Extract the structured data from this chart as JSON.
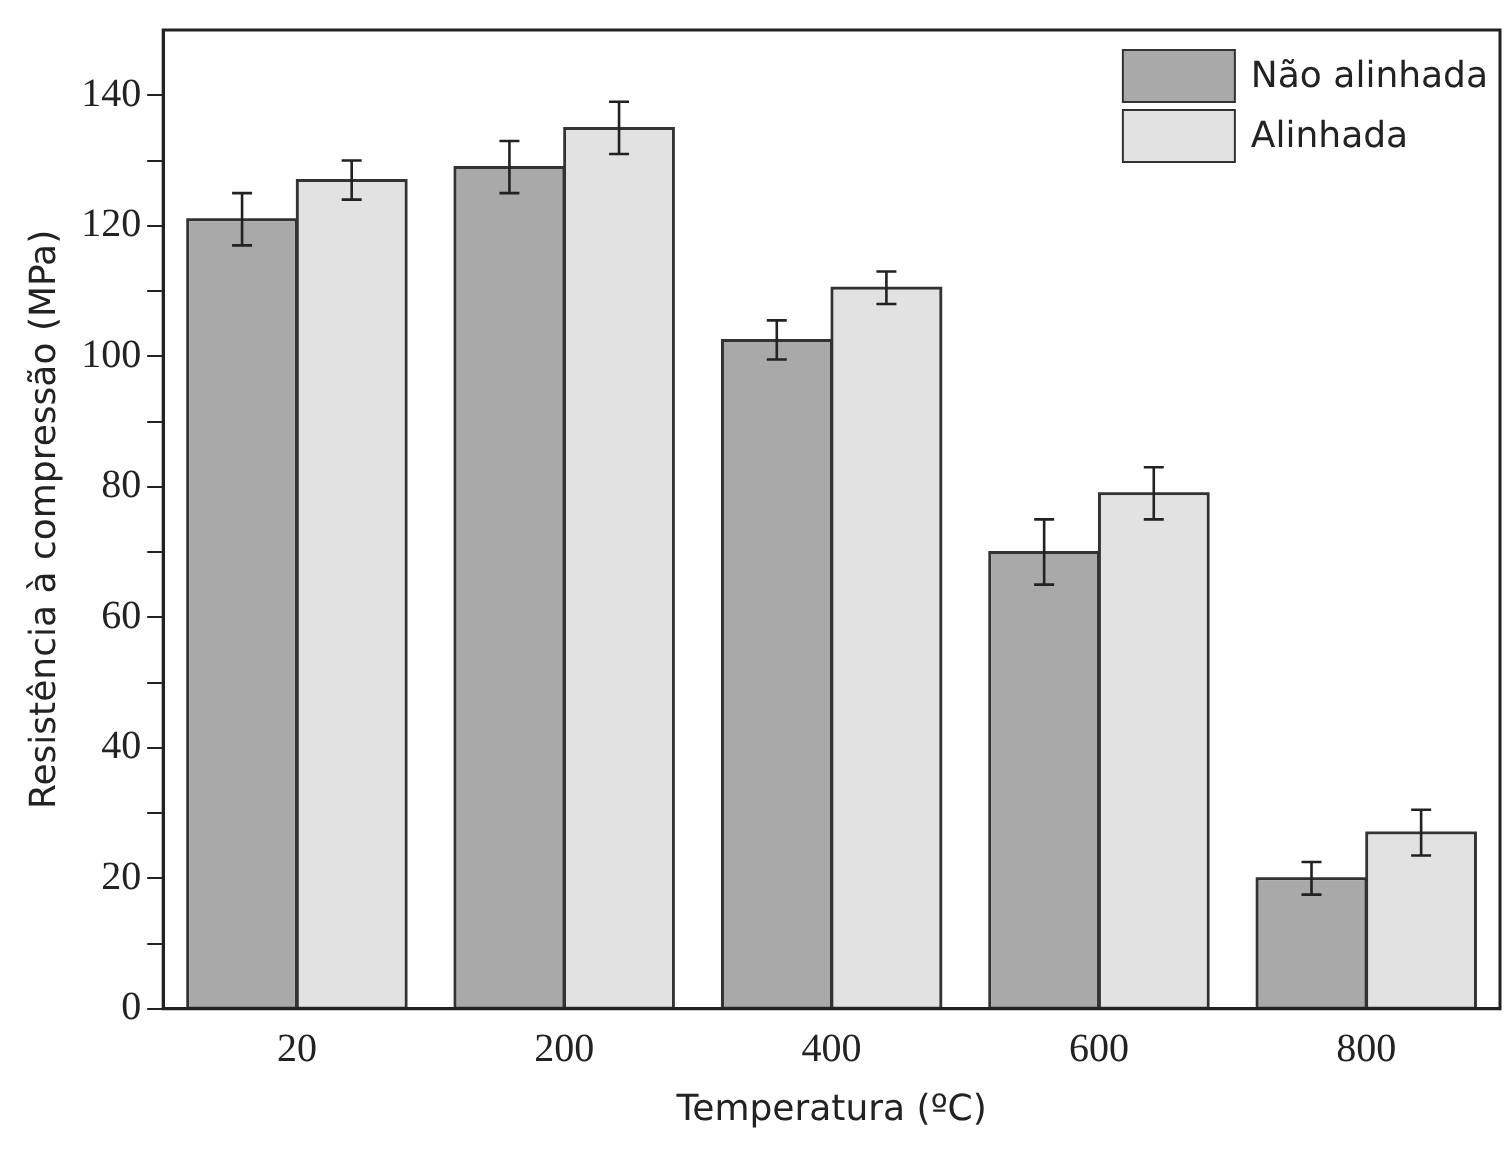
{
  "chart_data": {
    "type": "bar",
    "xlabel": "Temperatura (ºC)",
    "ylabel": "Resistência à compressão (MPa)",
    "categories": [
      "20",
      "200",
      "400",
      "600",
      "800"
    ],
    "series": [
      {
        "name": "Não alinhada",
        "color": "#a9a9a9",
        "values": [
          121,
          129,
          102.5,
          70,
          20
        ],
        "errors": [
          4,
          4,
          3,
          5,
          2.5
        ]
      },
      {
        "name": "Alinhada",
        "color": "#e2e2e2",
        "values": [
          127,
          135,
          110.5,
          79,
          27
        ],
        "errors": [
          3,
          4,
          2.5,
          4,
          3.5
        ]
      }
    ],
    "ylim": [
      0,
      150
    ],
    "yticks": [
      0,
      {
        "value": 10,
        "label": null
      },
      20,
      {
        "value": 30,
        "label": null
      },
      40,
      {
        "value": 50,
        "label": null
      },
      60,
      {
        "value": 70,
        "label": null
      },
      80,
      {
        "value": 90,
        "label": null
      },
      100,
      {
        "value": 110,
        "label": null
      },
      120,
      {
        "value": 130,
        "label": null
      },
      140
    ],
    "grid": false,
    "legend": "top right"
  }
}
